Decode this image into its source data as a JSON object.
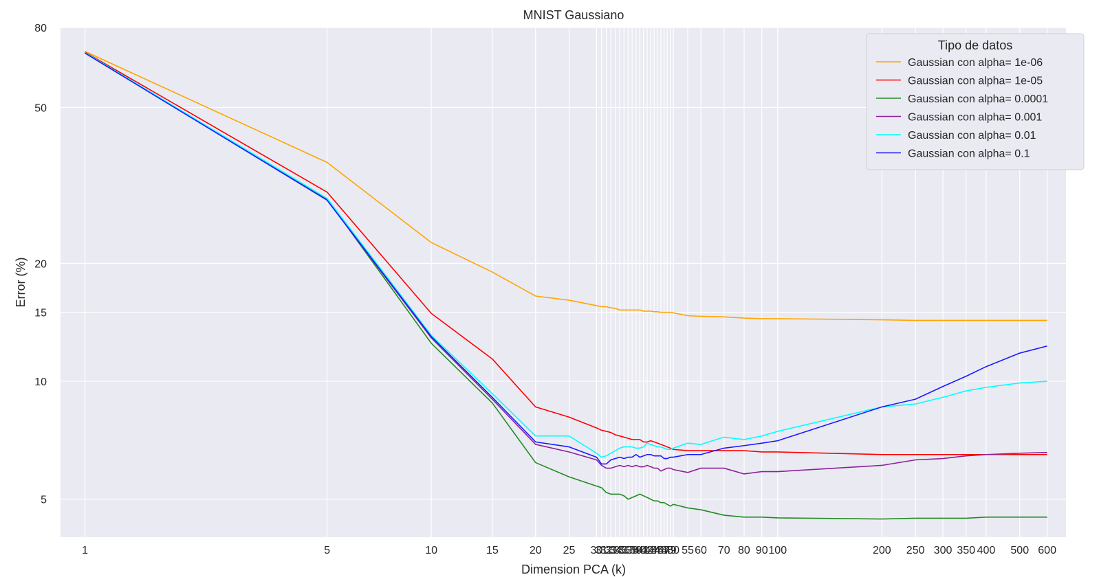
{
  "chart_data": {
    "type": "line",
    "title": "MNIST Gaussiano",
    "xlabel": "Dimension PCA (k)",
    "ylabel": "Error (%)",
    "xscale": "log",
    "yscale": "log",
    "xlim": [
      0.85,
      680
    ],
    "ylim": [
      4.0,
      80
    ],
    "grid": true,
    "legend_title": "Tipo de datos",
    "legend_position": "top-right",
    "x": [
      1,
      5,
      10,
      15,
      20,
      25,
      30,
      31,
      32,
      33,
      34,
      35,
      36,
      37,
      38,
      39,
      40,
      41,
      42,
      43,
      44,
      45,
      46,
      47,
      48,
      49,
      50,
      55,
      60,
      70,
      80,
      90,
      100,
      200,
      250,
      300,
      350,
      400,
      500,
      600
    ],
    "x_tick_labels": [
      "1",
      "5",
      "10",
      "15",
      "20",
      "25",
      "30",
      "31",
      "32",
      "33",
      "34",
      "35",
      "36",
      "37",
      "38",
      "39",
      "40",
      "41",
      "42",
      "43",
      "44",
      "45",
      "46",
      "47",
      "48",
      "49",
      "50",
      "55",
      "60",
      "70",
      "80",
      "90",
      "100",
      "200",
      "250",
      "300",
      "350",
      "400",
      "500",
      "600"
    ],
    "y_ticks": [
      5,
      10,
      15,
      20,
      50,
      80
    ],
    "y_tick_labels": [
      "5",
      "10",
      "15",
      "20",
      "50",
      "80"
    ],
    "series": [
      {
        "name": "Gaussian con alpha= 1e-06",
        "color": "#ffa500",
        "values": [
          69.5,
          36.2,
          22.6,
          19.0,
          16.5,
          16.1,
          15.6,
          15.5,
          15.5,
          15.4,
          15.35,
          15.2,
          15.2,
          15.2,
          15.2,
          15.2,
          15.2,
          15.1,
          15.1,
          15.1,
          15.05,
          15.05,
          15.0,
          15.0,
          15.0,
          15.0,
          14.95,
          14.7,
          14.65,
          14.6,
          14.5,
          14.45,
          14.45,
          14.35,
          14.3,
          14.3,
          14.3,
          14.3,
          14.3,
          14.3
        ]
      },
      {
        "name": "Gaussian con alpha= 1e-05",
        "color": "#ff0000",
        "values": [
          69.2,
          30.4,
          14.9,
          11.4,
          8.6,
          8.1,
          7.6,
          7.5,
          7.45,
          7.4,
          7.3,
          7.25,
          7.2,
          7.15,
          7.1,
          7.1,
          7.1,
          7.0,
          7.0,
          7.05,
          7.0,
          6.95,
          6.9,
          6.85,
          6.8,
          6.75,
          6.7,
          6.65,
          6.65,
          6.65,
          6.65,
          6.6,
          6.6,
          6.5,
          6.5,
          6.5,
          6.5,
          6.5,
          6.5,
          6.5
        ]
      },
      {
        "name": "Gaussian con alpha= 0.0001",
        "color": "#228b22",
        "values": [
          69.0,
          29.2,
          12.5,
          8.8,
          6.2,
          5.7,
          5.4,
          5.35,
          5.2,
          5.15,
          5.15,
          5.15,
          5.1,
          5.0,
          5.05,
          5.1,
          5.15,
          5.1,
          5.05,
          5.0,
          4.95,
          4.95,
          4.9,
          4.9,
          4.85,
          4.8,
          4.85,
          4.75,
          4.7,
          4.55,
          4.5,
          4.5,
          4.48,
          4.45,
          4.47,
          4.47,
          4.47,
          4.5,
          4.5,
          4.5
        ]
      },
      {
        "name": "Gaussian con alpha= 0.001",
        "color": "#8b2199",
        "values": [
          69.0,
          29.0,
          12.9,
          9.0,
          6.9,
          6.6,
          6.3,
          6.1,
          6.0,
          6.0,
          6.05,
          6.1,
          6.05,
          6.1,
          6.05,
          6.1,
          6.05,
          6.05,
          6.1,
          6.05,
          6.0,
          6.0,
          5.9,
          5.95,
          6.0,
          6.0,
          5.95,
          5.85,
          6.0,
          6.0,
          5.8,
          5.88,
          5.88,
          6.1,
          6.3,
          6.35,
          6.45,
          6.5,
          6.55,
          6.58
        ]
      },
      {
        "name": "Gaussian con alpha= 0.01",
        "color": "#00ffff",
        "values": [
          69.0,
          29.3,
          13.1,
          9.3,
          7.25,
          7.25,
          6.55,
          6.4,
          6.45,
          6.55,
          6.65,
          6.75,
          6.8,
          6.8,
          6.8,
          6.75,
          6.75,
          6.8,
          6.95,
          6.9,
          6.85,
          6.8,
          6.8,
          6.75,
          6.7,
          6.7,
          6.75,
          6.95,
          6.9,
          7.2,
          7.1,
          7.25,
          7.45,
          8.6,
          8.75,
          9.1,
          9.45,
          9.65,
          9.9,
          10.0
        ]
      },
      {
        "name": "Gaussian con alpha= 0.1",
        "color": "#1a1aff",
        "values": [
          68.8,
          29.0,
          13.0,
          9.1,
          7.0,
          6.8,
          6.4,
          6.15,
          6.15,
          6.3,
          6.35,
          6.4,
          6.35,
          6.4,
          6.4,
          6.5,
          6.4,
          6.45,
          6.5,
          6.5,
          6.45,
          6.45,
          6.45,
          6.35,
          6.35,
          6.4,
          6.4,
          6.5,
          6.5,
          6.75,
          6.85,
          6.95,
          7.05,
          8.6,
          9.0,
          9.7,
          10.3,
          10.9,
          11.8,
          12.3
        ]
      }
    ]
  }
}
